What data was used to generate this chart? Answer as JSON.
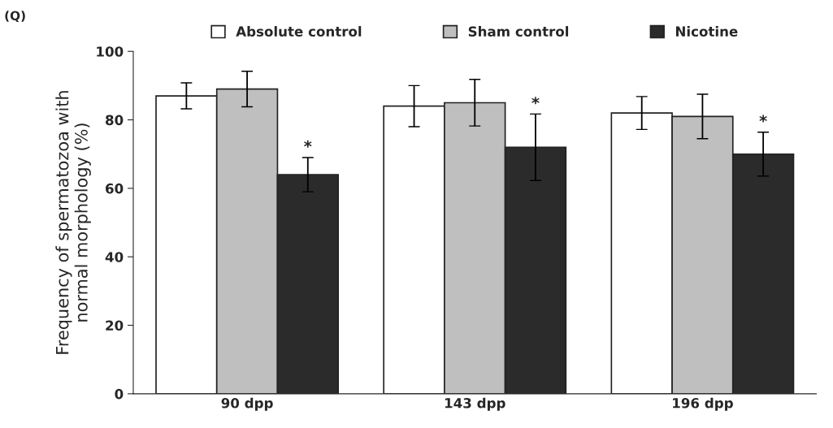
{
  "chart_data": {
    "type": "bar",
    "title": "(Q)",
    "ylabel": "Frequency of spermatozoa with\nnormal morphology (%)",
    "categories": [
      "90 dpp",
      "143 dpp",
      "196 dpp"
    ],
    "series": [
      {
        "name": "Absolute control",
        "color": "#ffffff",
        "values": [
          87,
          84,
          82
        ],
        "errors": [
          3.8,
          6,
          4.8
        ]
      },
      {
        "name": "Sham control",
        "color": "#bfbfbf",
        "values": [
          89,
          85,
          81
        ],
        "errors": [
          5.2,
          6.8,
          6.5
        ]
      },
      {
        "name": "Nicotine",
        "color": "#2b2b2b",
        "values": [
          64,
          72,
          70
        ],
        "errors": [
          5,
          9.7,
          6.4
        ]
      }
    ],
    "annotations": [
      "*",
      "*",
      "*"
    ],
    "ylim": [
      0,
      100
    ],
    "yticks": [
      0,
      20,
      40,
      60,
      80,
      100
    ],
    "grid": false,
    "legend": "top"
  }
}
